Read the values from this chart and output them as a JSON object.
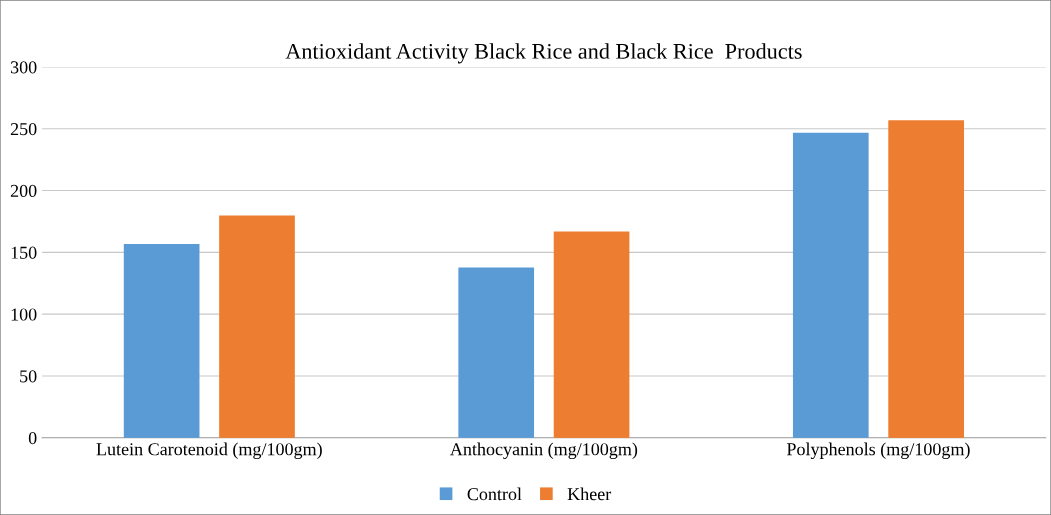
{
  "chart_data": {
    "type": "bar",
    "title": "Antioxidant Activity Black Rice and Black Rice  Products",
    "categories": [
      "Lutein Carotenoid (mg/100gm)",
      "Anthocyanin (mg/100gm)",
      "Polyphenols (mg/100gm)"
    ],
    "series": [
      {
        "name": "Control",
        "color": "#5b9bd5",
        "values": [
          156,
          137,
          246
        ]
      },
      {
        "name": "Kheer",
        "color": "#ed7d31",
        "values": [
          179,
          166,
          256
        ]
      }
    ],
    "ylim": [
      0,
      300
    ],
    "yticks": [
      0,
      50,
      100,
      150,
      200,
      250,
      300
    ],
    "grid": "y",
    "legend": "bottom"
  }
}
